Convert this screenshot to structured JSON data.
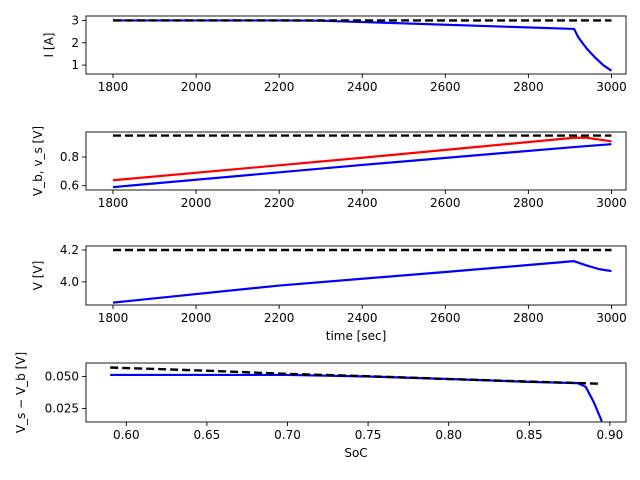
{
  "chart_data": [
    {
      "type": "line",
      "ylabel": "I [A]",
      "xlabel": "",
      "xlim": [
        1735,
        3035
      ],
      "ylim": [
        0.6,
        3.2
      ],
      "xticks": [
        1800,
        2000,
        2200,
        2400,
        2600,
        2800,
        3000
      ],
      "yticks": [
        1,
        2,
        3
      ],
      "xtick_labels": [
        "1800",
        "2000",
        "2200",
        "2400",
        "2600",
        "2800",
        "3000"
      ],
      "ytick_labels": [
        "1",
        "2",
        "3"
      ],
      "series": [
        {
          "color": "#0000ff",
          "style": "solid",
          "x": [
            1800,
            2200,
            2300,
            2910,
            2920,
            2940,
            2960,
            2980,
            3000
          ],
          "y": [
            3.0,
            3.0,
            2.99,
            2.62,
            2.25,
            1.75,
            1.35,
            1.0,
            0.75
          ]
        },
        {
          "color": "#000000",
          "style": "dashed",
          "x": [
            1800,
            3000
          ],
          "y": [
            3.0,
            3.0
          ]
        }
      ]
    },
    {
      "type": "line",
      "ylabel": "V_b, v_s [V]",
      "xlabel": "",
      "xlim": [
        1735,
        3035
      ],
      "ylim": [
        0.57,
        0.975
      ],
      "xticks": [
        1800,
        2000,
        2200,
        2400,
        2600,
        2800,
        3000
      ],
      "yticks": [
        0.6,
        0.8
      ],
      "xtick_labels": [
        "1800",
        "2000",
        "2200",
        "2400",
        "2600",
        "2800",
        "3000"
      ],
      "ytick_labels": [
        "0.6",
        "0.8"
      ],
      "series": [
        {
          "color": "#ff0000",
          "style": "solid",
          "x": [
            1800,
            2400,
            2910,
            2940,
            3000
          ],
          "y": [
            0.638,
            0.795,
            0.935,
            0.935,
            0.91
          ]
        },
        {
          "color": "#0000ff",
          "style": "solid",
          "x": [
            1800,
            2400,
            2910,
            3000
          ],
          "y": [
            0.59,
            0.745,
            0.87,
            0.89
          ]
        },
        {
          "color": "#000000",
          "style": "dashed",
          "x": [
            1800,
            3000
          ],
          "y": [
            0.95,
            0.95
          ]
        }
      ]
    },
    {
      "type": "line",
      "ylabel": "V [V]",
      "xlabel": "time [sec]",
      "xlim": [
        1735,
        3035
      ],
      "ylim": [
        3.855,
        4.225
      ],
      "xticks": [
        1800,
        2000,
        2200,
        2400,
        2600,
        2800,
        3000
      ],
      "yticks": [
        4.0,
        4.2
      ],
      "xtick_labels": [
        "1800",
        "2000",
        "2200",
        "2400",
        "2600",
        "2800",
        "3000"
      ],
      "ytick_labels": [
        "4.0",
        "4.2"
      ],
      "series": [
        {
          "color": "#0000ff",
          "style": "solid",
          "x": [
            1800,
            2200,
            2600,
            2910,
            2940,
            2970,
            3000
          ],
          "y": [
            3.87,
            3.977,
            4.062,
            4.13,
            4.103,
            4.08,
            4.068
          ]
        },
        {
          "color": "#000000",
          "style": "dashed",
          "x": [
            1800,
            3000
          ],
          "y": [
            4.2,
            4.2
          ]
        }
      ]
    },
    {
      "type": "line",
      "ylabel": "V_s − V_b [V]",
      "xlabel": "SoC",
      "xlim": [
        0.575,
        0.91
      ],
      "ylim": [
        0.0145,
        0.0605
      ],
      "xticks": [
        0.6,
        0.65,
        0.7,
        0.75,
        0.8,
        0.85,
        0.9
      ],
      "yticks": [
        0.025,
        0.05
      ],
      "xtick_labels": [
        "0.60",
        "0.65",
        "0.70",
        "0.75",
        "0.80",
        "0.85",
        "0.90"
      ],
      "ytick_labels": [
        "0.025",
        "0.050"
      ],
      "series": [
        {
          "color": "#0000ff",
          "style": "solid",
          "x": [
            0.59,
            0.7,
            0.75,
            0.8,
            0.85,
            0.88,
            0.885,
            0.89,
            0.895
          ],
          "y": [
            0.0512,
            0.0512,
            0.05,
            0.048,
            0.0458,
            0.0448,
            0.042,
            0.03,
            0.015
          ]
        },
        {
          "color": "#000000",
          "style": "dashed",
          "x": [
            0.59,
            0.65,
            0.7,
            0.75,
            0.8,
            0.85,
            0.895
          ],
          "y": [
            0.057,
            0.0545,
            0.052,
            0.0502,
            0.048,
            0.046,
            0.0443
          ]
        }
      ]
    }
  ]
}
